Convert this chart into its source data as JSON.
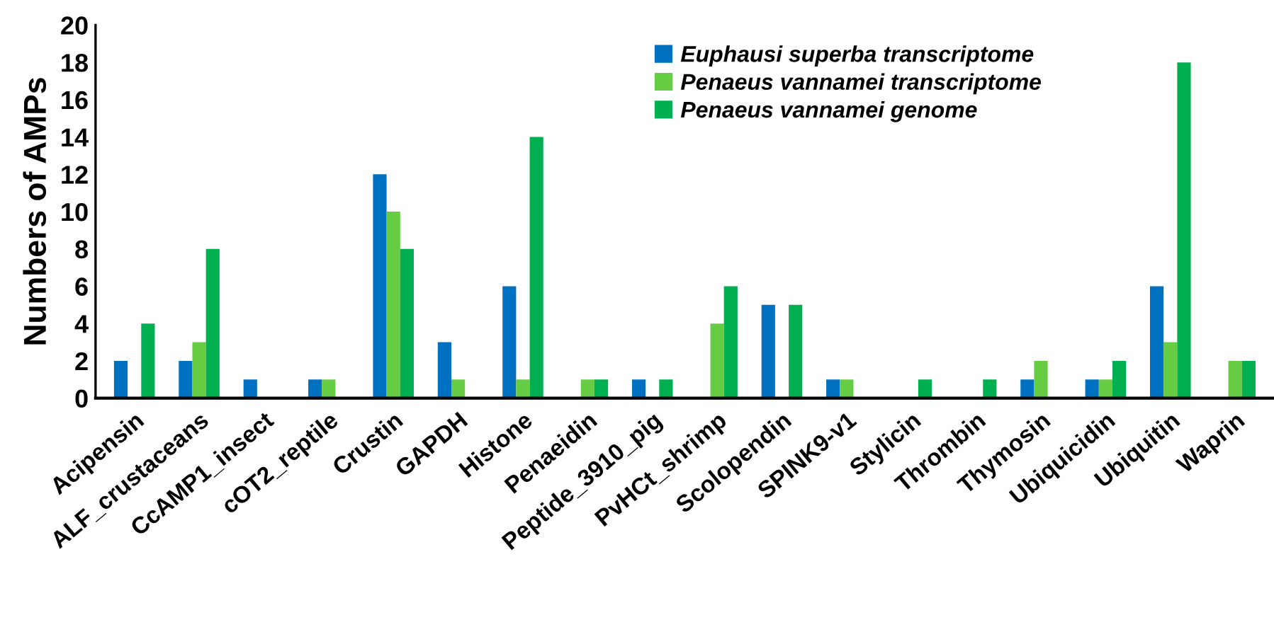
{
  "chart_data": {
    "type": "bar",
    "ylabel": "Numbers of AMPs",
    "categories": [
      "Acipensin",
      "ALF_crustaceans",
      "CcAMP1_insect",
      "cOT2_reptile",
      "Crustin",
      "GAPDH",
      "Histone",
      "Penaeidin",
      "Peptide_3910_pig",
      "PvHCt_shrimp",
      "Scolopendin",
      "SPINK9-v1",
      "Stylicin",
      "Thrombin",
      "Thymosin",
      "Ubiquicidin",
      "Ubiquitin",
      "Waprin"
    ],
    "series": [
      {
        "name": "Euphausi superba transcriptome",
        "color": "#0070c0",
        "values": [
          2,
          2,
          1,
          1,
          12,
          3,
          6,
          0,
          1,
          0,
          5,
          1,
          0,
          0,
          1,
          1,
          6,
          0
        ]
      },
      {
        "name": "Penaeus vannamei transcriptome",
        "color": "#66cc44",
        "values": [
          0,
          3,
          0,
          1,
          10,
          1,
          1,
          1,
          0,
          4,
          0,
          1,
          0,
          0,
          2,
          1,
          3,
          2
        ]
      },
      {
        "name": "Penaeus vannamei genome",
        "color": "#00b050",
        "values": [
          4,
          8,
          0,
          0,
          8,
          0,
          14,
          1,
          1,
          6,
          5,
          0,
          1,
          1,
          0,
          2,
          18,
          2
        ]
      }
    ],
    "ylim": [
      0,
      20
    ],
    "yticks": [
      0,
      2,
      4,
      6,
      8,
      10,
      12,
      14,
      16,
      18,
      20
    ],
    "grid": false,
    "legend": "top right"
  }
}
